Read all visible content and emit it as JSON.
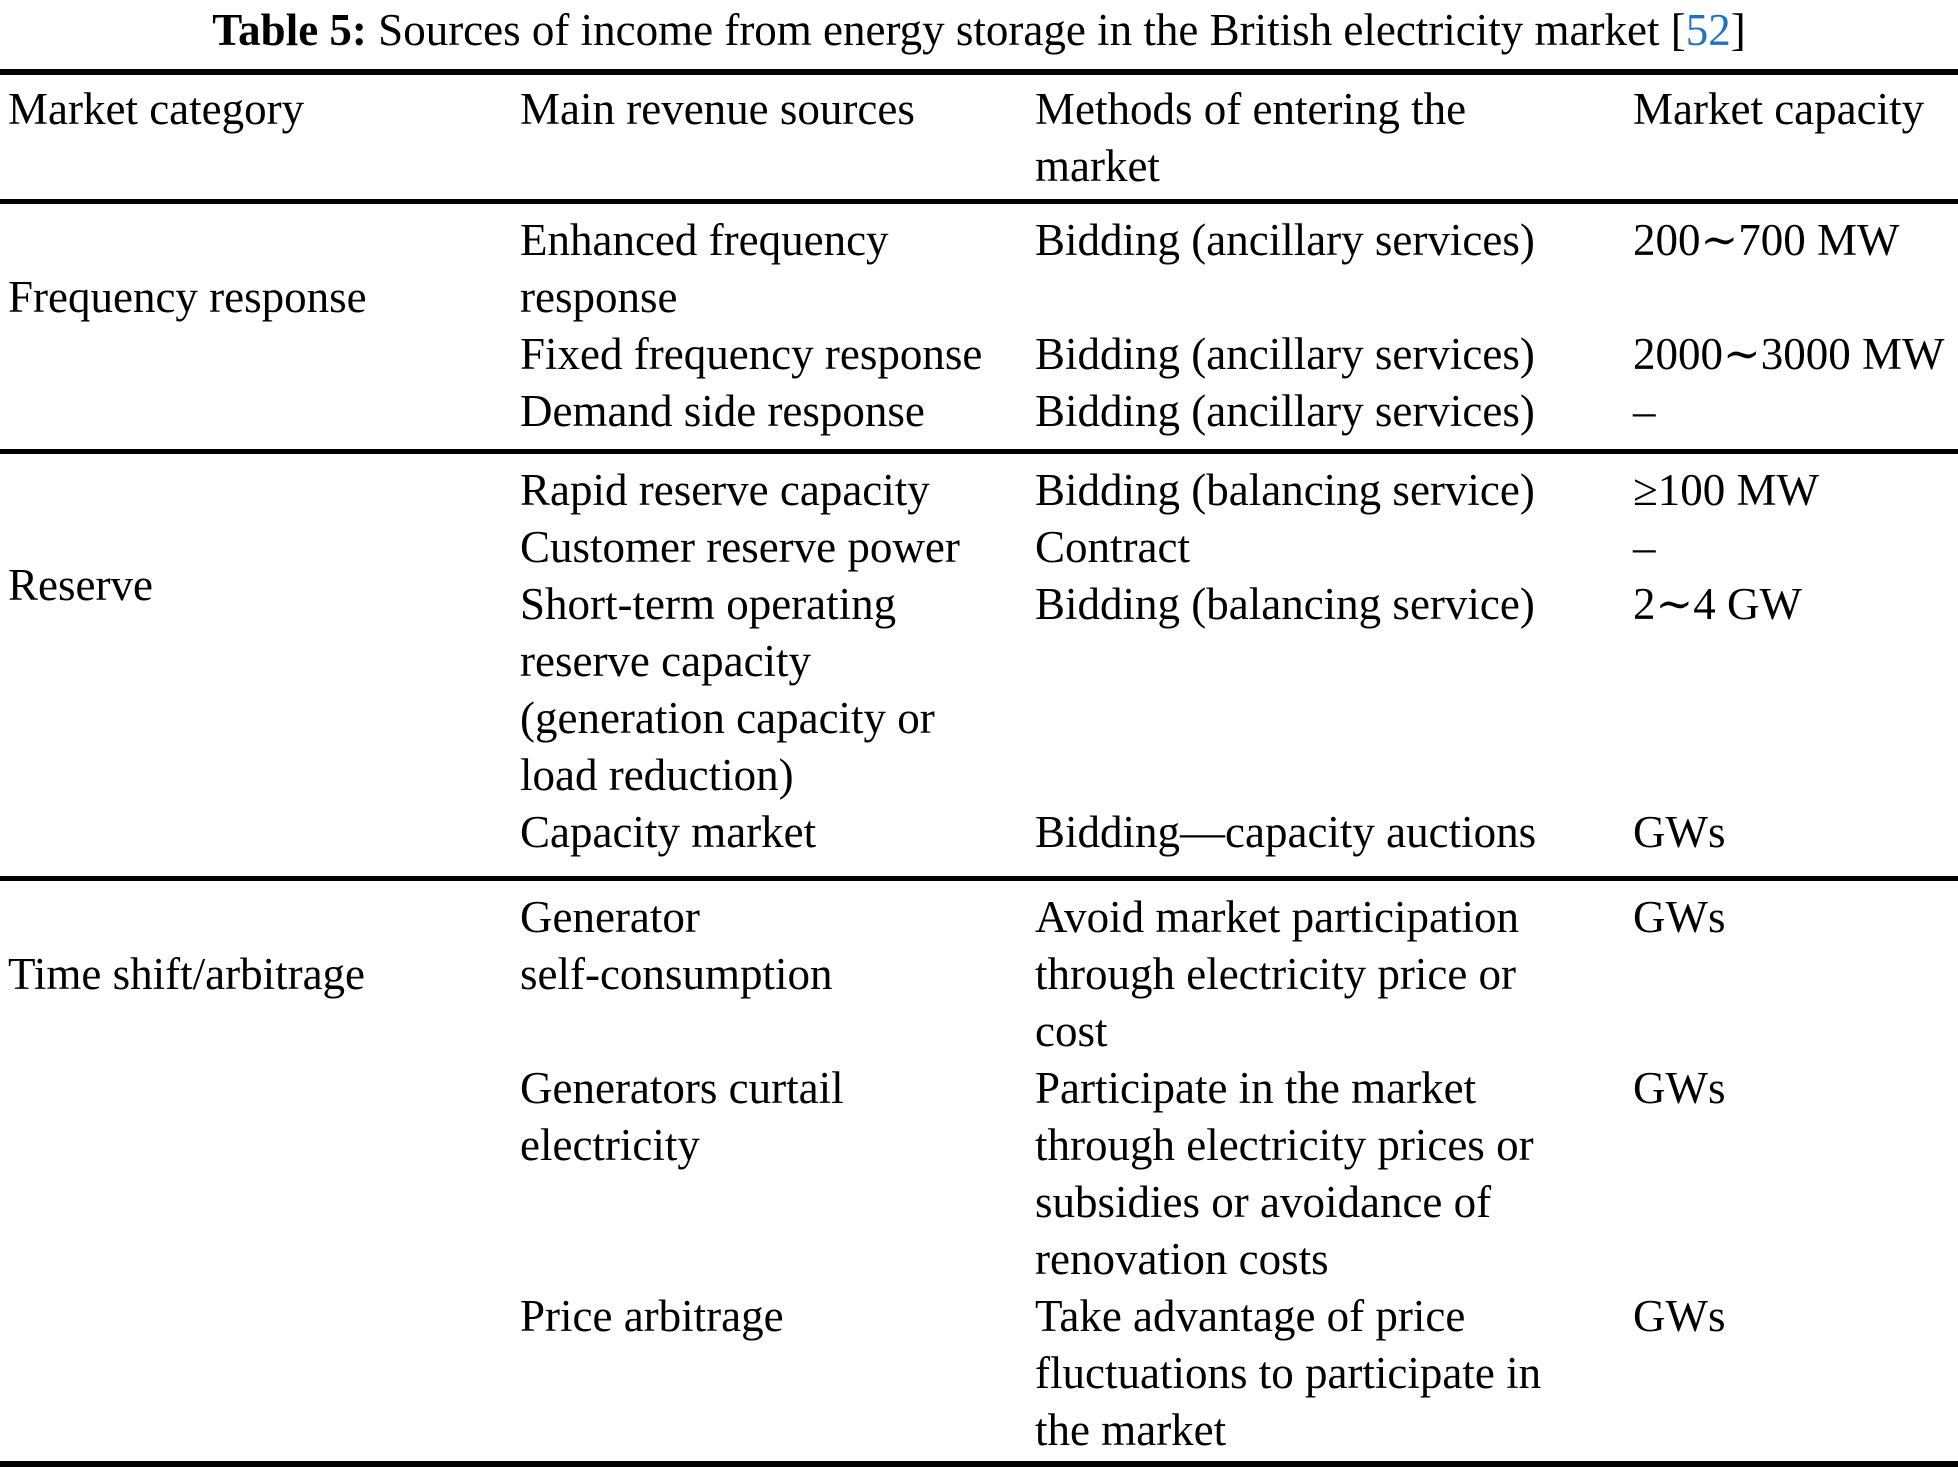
{
  "caption": {
    "label": "Table 5:",
    "text": " Sources of income from energy storage in the British electricity market ",
    "citation_open": "[",
    "citation": "52",
    "citation_close": "]"
  },
  "table": {
    "headers": {
      "market_category": "Market category",
      "main_revenue_sources": "Main revenue sources",
      "methods_of_entering": "Methods of entering the\nmarket",
      "market_capacity": "Market capacity"
    },
    "sections": [
      {
        "category": "Frequency response",
        "rows": [
          {
            "source": "Enhanced frequency\nresponse",
            "method": "Bidding (ancillary services)",
            "capacity": "200∼700 MW"
          },
          {
            "source": "Fixed frequency response",
            "method": "Bidding (ancillary services)",
            "capacity": "2000∼3000 MW"
          },
          {
            "source": "Demand side response",
            "method": "Bidding (ancillary services)",
            "capacity": "–"
          }
        ]
      },
      {
        "category": "Reserve",
        "rows": [
          {
            "source": "Rapid reserve capacity",
            "method": "Bidding (balancing service)",
            "capacity": "≥100 MW"
          },
          {
            "source": "Customer reserve power",
            "method": "Contract",
            "capacity": "–"
          },
          {
            "source": "Short-term operating\nreserve capacity\n(generation capacity or\nload reduction)",
            "method": "Bidding (balancing service)",
            "capacity": "2∼4 GW"
          },
          {
            "source": "Capacity market",
            "method": "Bidding—capacity auctions",
            "capacity": "GWs"
          }
        ]
      },
      {
        "category": "Time shift/arbitrage",
        "rows": [
          {
            "source": "Generator\nself-consumption",
            "method": "Avoid market participation\nthrough electricity price or\ncost",
            "capacity": "GWs"
          },
          {
            "source": "Generators curtail\nelectricity",
            "method": "Participate in the market\nthrough electricity prices or\nsubsidies or avoidance of\nrenovation costs",
            "capacity": "GWs"
          },
          {
            "source": "Price arbitrage",
            "method": "Take advantage of price\nfluctuations to participate in\nthe market",
            "capacity": "GWs"
          }
        ]
      }
    ]
  },
  "colors": {
    "text": "#000000",
    "rule": "#000000",
    "citation_link": "#1d72c2",
    "background": "#ffffff"
  }
}
